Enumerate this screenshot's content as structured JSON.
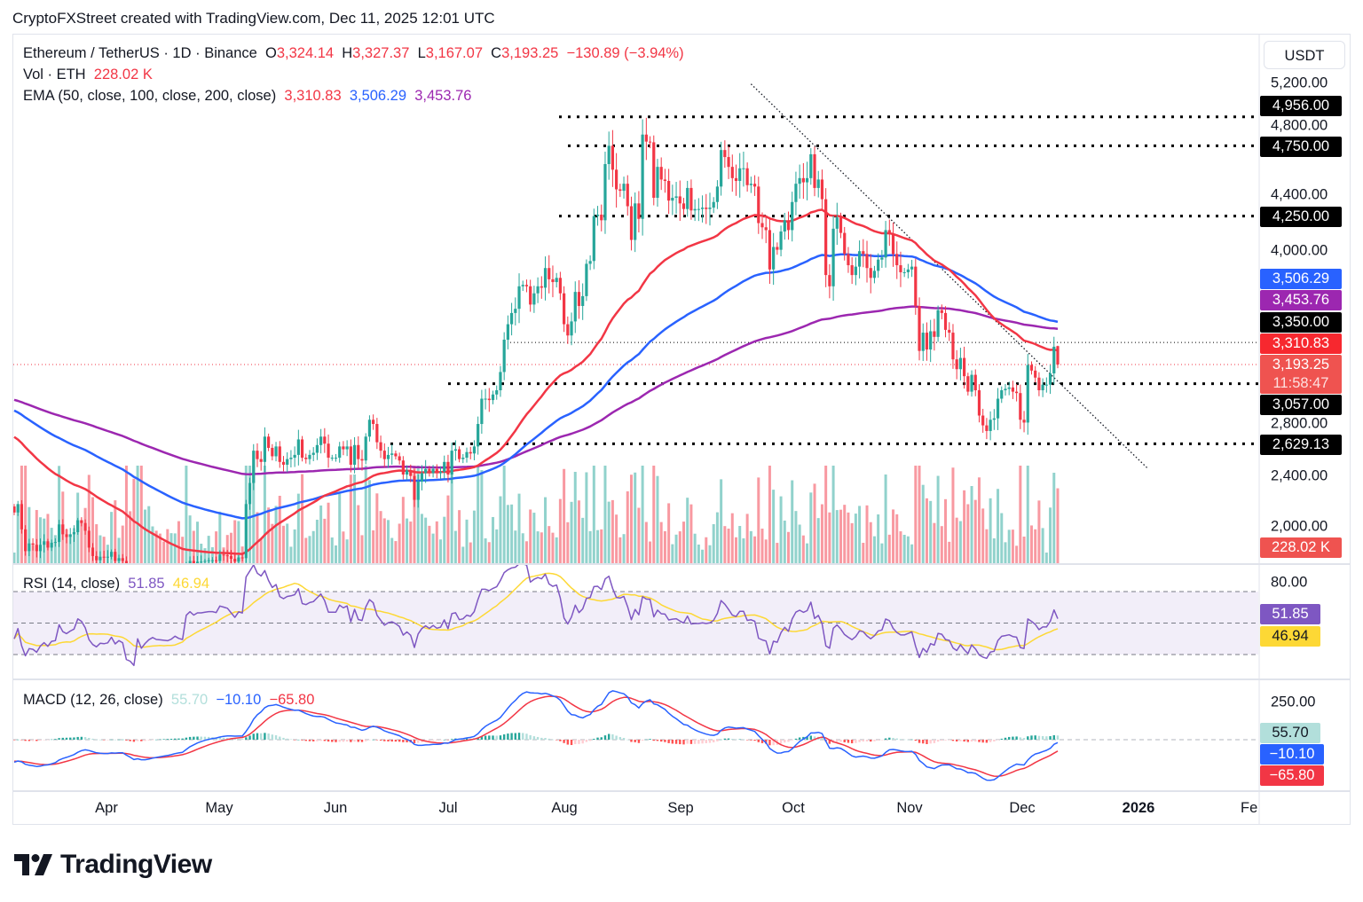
{
  "header": {
    "attribution": "CryptoFXStreet created with TradingView.com, Dec 11, 2025 12:01 UTC"
  },
  "legend": {
    "symbol": "Ethereum / TetherUS · 1D · Binance",
    "o_label": "O",
    "o": "3,324.14",
    "h_label": "H",
    "h": "3,327.37",
    "l_label": "L",
    "l": "3,167.07",
    "c_label": "C",
    "c": "3,193.25",
    "change": "−130.89 (−3.94%)",
    "vol_label": "Vol · ETH",
    "vol": "228.02 K",
    "ema_label": "EMA (50, close, 100, close, 200, close)",
    "ema50": "3,310.83",
    "ema100": "3,506.29",
    "ema200": "3,453.76"
  },
  "rsi": {
    "label": "RSI (14, close)",
    "value": "51.85",
    "ma": "46.94",
    "tick": "80.00"
  },
  "macd": {
    "label": "MACD (12, 26, close)",
    "hist": "55.70",
    "macd": "−10.10",
    "signal": "−65.80",
    "tick": "250.00"
  },
  "price_axis": {
    "currency": "USDT",
    "ticks": [
      "5,200.00",
      "4,800.00",
      "4,400.00",
      "4,000.00",
      "2,800.00",
      "2,400.00",
      "2,000.00"
    ],
    "badges": {
      "l4956": "4,956.00",
      "l4750": "4,750.00",
      "l4250": "4,250.00",
      "ema100": "3,506.29",
      "ema200": "3,453.76",
      "l3350": "3,350.00",
      "ema50": "3,310.83",
      "last": "3,193.25",
      "countdown": "11:58:47",
      "l3057": "3,057.00",
      "l2629": "2,629.13",
      "vol": "228.02 K"
    }
  },
  "time_axis": {
    "labels": [
      "Apr",
      "May",
      "Jun",
      "Jul",
      "Aug",
      "Sep",
      "Oct",
      "Nov",
      "Dec",
      "2026",
      "Fe"
    ]
  },
  "brand": {
    "logo_text": "TradingView"
  },
  "colors": {
    "up": "#26a69a",
    "down": "#f23645",
    "ema50": "#f23645",
    "ema100": "#2962ff",
    "ema200": "#9c27b0",
    "rsi": "#7e57c2",
    "rsi_ma": "#fdd835",
    "macd": "#2962ff",
    "signal": "#f23645"
  },
  "chart_data": {
    "type": "candlestick",
    "symbol": "ETH/USDT",
    "interval": "1D",
    "y_scale": "linear",
    "ylim": [
      1780,
      5400
    ],
    "daily_close_by_month": {
      "Mar": [
        2140,
        2200,
        2020,
        1865,
        1920,
        1910,
        1865,
        1910,
        1935,
        1890,
        1925,
        1930,
        2055,
        1985,
        1965,
        1985,
        2000,
        2085,
        2065,
        2010,
        1890,
        1830,
        1800,
        1825,
        1820
      ],
      "Apr": [
        1825,
        1860,
        1795,
        1815,
        1795,
        1580,
        1550,
        1470,
        1670,
        1520,
        1565,
        1600,
        1620,
        1595,
        1590,
        1585,
        1580,
        1590,
        1610,
        1590,
        1580,
        1760,
        1795,
        1770,
        1790,
        1790,
        1795,
        1800,
        1800,
        1795
      ],
      "May": [
        1840,
        1835,
        1830,
        1810,
        1790,
        1820,
        1815,
        2200,
        2350,
        2580,
        2520,
        2500,
        2680,
        2600,
        2540,
        2610,
        2500,
        2480,
        2520,
        2530,
        2550,
        2660,
        2530,
        2520,
        2550,
        2565,
        2620,
        2680,
        2630,
        2530,
        2530
      ],
      "Jun": [
        2530,
        2610,
        2590,
        2610,
        2480,
        2620,
        2520,
        2510,
        2680,
        2800,
        2770,
        2640,
        2580,
        2520,
        2550,
        2560,
        2540,
        2510,
        2410,
        2440,
        2400,
        2230,
        2360,
        2420,
        2450,
        2420,
        2450,
        2420,
        2430,
        2500
      ],
      "Jul": [
        2410,
        2580,
        2590,
        2520,
        2530,
        2570,
        2560,
        2610,
        2770,
        2950,
        2950,
        2940,
        2980,
        3010,
        3140,
        3370,
        3480,
        3560,
        3590,
        3750,
        3760,
        3750,
        3620,
        3700,
        3750,
        3740,
        3880,
        3800,
        3780,
        3810,
        3700
      ],
      "Aug": [
        3480,
        3400,
        3500,
        3710,
        3610,
        3680,
        3910,
        3930,
        4250,
        4260,
        4220,
        4620,
        4750,
        4580,
        4440,
        4430,
        4480,
        4320,
        4080,
        4340,
        4230,
        4830,
        4780,
        4775,
        4380,
        4600,
        4510,
        4500,
        4360,
        4380,
        4390
      ],
      "Sep": [
        4340,
        4300,
        4450,
        4290,
        4300,
        4300,
        4310,
        4300,
        4310,
        4350,
        4460,
        4720,
        4670,
        4600,
        4520,
        4500,
        4590,
        4590,
        4470,
        4480,
        4460,
        4200,
        4170,
        4150,
        3870,
        4030,
        4010,
        4140,
        4220,
        4150
      ],
      "Oct": [
        4350,
        4480,
        4520,
        4490,
        4520,
        4690,
        4450,
        4510,
        4370,
        3830,
        3750,
        4160,
        4240,
        4130,
        3980,
        3900,
        3830,
        3890,
        4000,
        3980,
        3880,
        3810,
        3860,
        3940,
        3955,
        4150,
        4120,
        3980,
        3900,
        3850,
        3850
      ],
      "Nov": [
        3870,
        3890,
        3610,
        3290,
        3420,
        3300,
        3430,
        3390,
        3580,
        3560,
        3440,
        3420,
        3230,
        3160,
        3240,
        3110,
        3000,
        3120,
        3010,
        2830,
        2760,
        2720,
        2800,
        2810,
        2950,
        3010,
        3020,
        3030,
        3000,
        2990
      ],
      "Dec": [
        2800,
        2780,
        3190,
        3150,
        3100,
        3010,
        3050,
        3050,
        3130,
        3320,
        3193.25
      ]
    },
    "last_candle": {
      "open": 3324.14,
      "high": 3327.37,
      "low": 3167.07,
      "close": 3193.25
    },
    "horizontal_levels": [
      4956,
      4750,
      4250,
      3350,
      3057,
      2629.13
    ],
    "trendline": {
      "from": [
        "2025-09-20",
        5190
      ],
      "to": [
        "2026-01-04",
        2455
      ]
    },
    "indicators": [
      "EMA 50",
      "EMA 100",
      "EMA 200",
      "Volume",
      "RSI 14",
      "MACD 12 26"
    ],
    "rsi_levels": [
      70,
      50,
      30
    ]
  }
}
